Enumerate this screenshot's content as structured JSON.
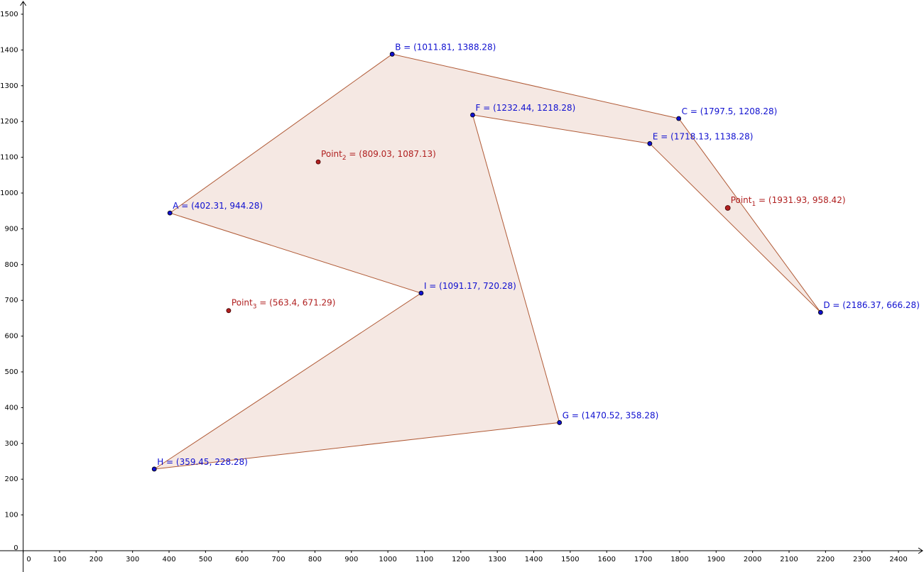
{
  "chart_data": {
    "type": "scatter",
    "xlim": [
      -63.5,
      2470
    ],
    "ylim": [
      -59.5,
      1539.7
    ],
    "xticks": [
      0,
      100,
      200,
      300,
      400,
      500,
      600,
      700,
      800,
      900,
      1000,
      1100,
      1200,
      1300,
      1400,
      1500,
      1600,
      1700,
      1800,
      1900,
      2000,
      2100,
      2200,
      2300,
      2400
    ],
    "yticks": [
      0,
      100,
      200,
      300,
      400,
      500,
      600,
      700,
      800,
      900,
      1000,
      1100,
      1200,
      1300,
      1400,
      1500
    ],
    "polygon": {
      "fill": "#f5e8e3",
      "stroke": "#b05a36",
      "points": [
        {
          "x": 402.31,
          "y": 944.28,
          "label": "A = (402.31, 944.28)"
        },
        {
          "x": 1011.81,
          "y": 1388.28,
          "label": "B = (1011.81, 1388.28)"
        },
        {
          "x": 1797.5,
          "y": 1208.28,
          "label": "C = (1797.5, 1208.28)"
        },
        {
          "x": 2186.37,
          "y": 666.28,
          "label": "D = (2186.37, 666.28)"
        },
        {
          "x": 1718.13,
          "y": 1138.28,
          "label": "E = (1718.13, 1138.28)"
        },
        {
          "x": 1232.44,
          "y": 1218.28,
          "label": "F = (1232.44, 1218.28)"
        },
        {
          "x": 1470.52,
          "y": 358.28,
          "label": "G = (1470.52, 358.28)"
        },
        {
          "x": 359.45,
          "y": 228.28,
          "label": "H = (359.45, 228.28)"
        },
        {
          "x": 1091.17,
          "y": 720.28,
          "label": "I = (1091.17, 720.28)"
        }
      ],
      "color": "#1010d0"
    },
    "free_points": {
      "color": "#b02020",
      "points": [
        {
          "x": 1931.93,
          "y": 958.42,
          "name": "Point",
          "sub": "1",
          "rest": " = (1931.93, 958.42)"
        },
        {
          "x": 809.03,
          "y": 1087.13,
          "name": "Point",
          "sub": "2",
          "rest": " = (809.03, 1087.13)"
        },
        {
          "x": 563.4,
          "y": 671.29,
          "name": "Point",
          "sub": "3",
          "rest": " = (563.4, 671.29)"
        }
      ]
    }
  }
}
